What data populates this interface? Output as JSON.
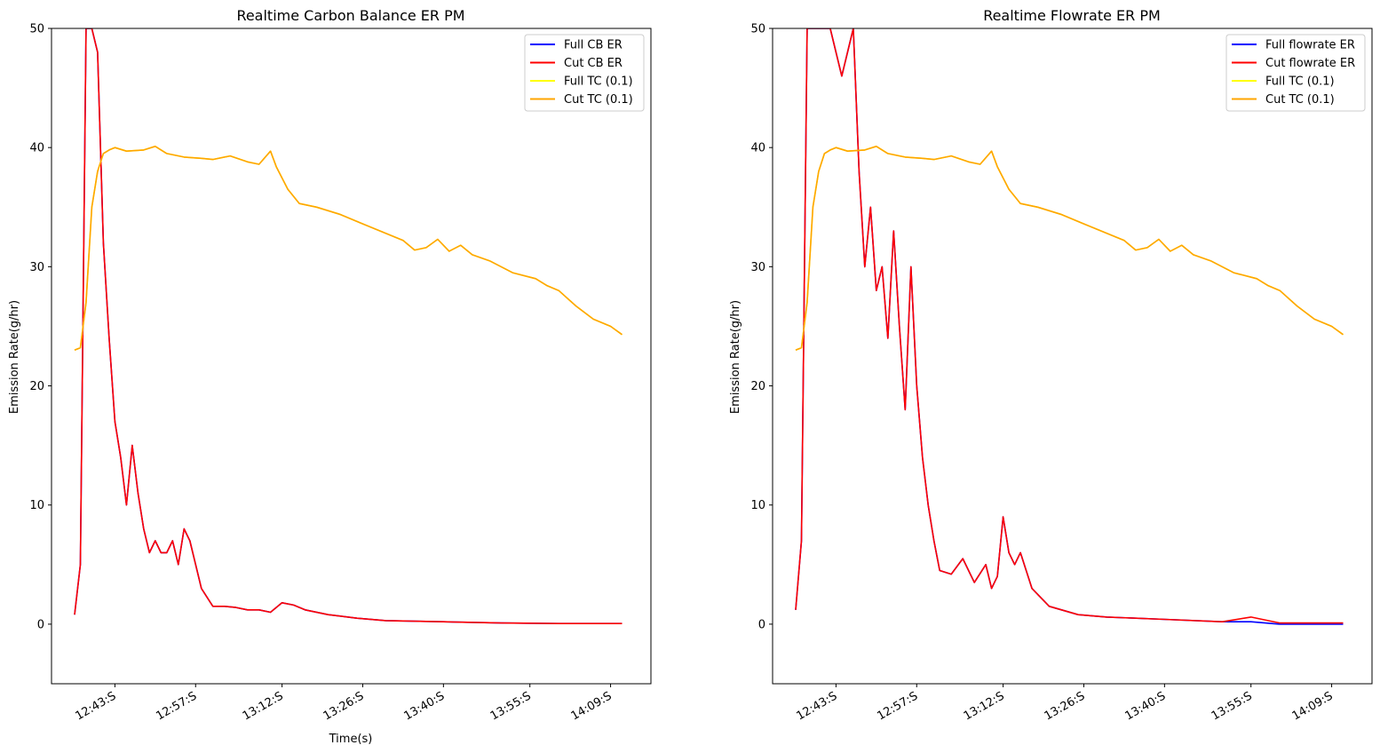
{
  "chart_data": [
    {
      "type": "line",
      "title": "Realtime Carbon Balance ER PM",
      "xlabel": "Time(s)",
      "ylabel": "Emission Rate(g/hr)",
      "ylim": [
        -5,
        50
      ],
      "xlim": [
        "12:32",
        "14:16"
      ],
      "yticks": [
        0,
        10,
        20,
        30,
        40,
        50
      ],
      "xticks": [
        "12:43:S",
        "12:57:S",
        "13:12:S",
        "13:26:S",
        "13:40:S",
        "13:55:S",
        "14:09:S"
      ],
      "legend_position": "top-right",
      "grid": false,
      "series": [
        {
          "name": "Full CB ER",
          "color": "#0000ff",
          "x": [
            "12:36",
            "12:37",
            "12:38",
            "12:39",
            "12:40",
            "12:41",
            "12:42",
            "12:43",
            "12:44",
            "12:45",
            "12:46",
            "12:47",
            "12:48",
            "12:49",
            "12:50",
            "12:51",
            "12:52",
            "12:53",
            "12:54",
            "12:55",
            "12:56",
            "12:57",
            "12:58",
            "13:00",
            "13:02",
            "13:04",
            "13:06",
            "13:08",
            "13:10",
            "13:12",
            "13:14",
            "13:16",
            "13:20",
            "13:25",
            "13:30",
            "13:40",
            "13:50",
            "14:00",
            "14:10",
            "14:11"
          ],
          "y": [
            0.8,
            5.0,
            50,
            50,
            48,
            32,
            24,
            17,
            14,
            10,
            15,
            11,
            8,
            6,
            7,
            6,
            6,
            7,
            5,
            8,
            7,
            5,
            3,
            1.5,
            1.5,
            1.4,
            1.2,
            1.2,
            1.0,
            1.8,
            1.6,
            1.2,
            0.8,
            0.5,
            0.3,
            0.2,
            0.1,
            0.05,
            0.05,
            0.05
          ]
        },
        {
          "name": "Cut CB ER",
          "color": "#ff0000",
          "x": [
            "12:36",
            "12:37",
            "12:38",
            "12:39",
            "12:40",
            "12:41",
            "12:42",
            "12:43",
            "12:44",
            "12:45",
            "12:46",
            "12:47",
            "12:48",
            "12:49",
            "12:50",
            "12:51",
            "12:52",
            "12:53",
            "12:54",
            "12:55",
            "12:56",
            "12:57",
            "12:58",
            "13:00",
            "13:02",
            "13:04",
            "13:06",
            "13:08",
            "13:10",
            "13:12",
            "13:14",
            "13:16",
            "13:20",
            "13:25",
            "13:30",
            "13:40",
            "13:50",
            "14:00",
            "14:10",
            "14:11"
          ],
          "y": [
            0.8,
            5.0,
            50,
            50,
            48,
            32,
            24,
            17,
            14,
            10,
            15,
            11,
            8,
            6,
            7,
            6,
            6,
            7,
            5,
            8,
            7,
            5,
            3,
            1.5,
            1.5,
            1.4,
            1.2,
            1.2,
            1.0,
            1.8,
            1.6,
            1.2,
            0.8,
            0.5,
            0.3,
            0.2,
            0.1,
            0.05,
            0.05,
            0.05
          ]
        },
        {
          "name": "Full TC (0.1)",
          "color": "#ffff00",
          "x": [
            "12:36",
            "12:37",
            "12:38",
            "12:39",
            "12:40",
            "12:41",
            "12:42",
            "12:43",
            "12:45",
            "12:48",
            "12:50",
            "12:52",
            "12:55",
            "12:58",
            "13:00",
            "13:03",
            "13:06",
            "13:08",
            "13:10",
            "13:11",
            "13:13",
            "13:15",
            "13:18",
            "13:22",
            "13:26",
            "13:30",
            "13:33",
            "13:35",
            "13:37",
            "13:39",
            "13:41",
            "13:43",
            "13:45",
            "13:48",
            "13:52",
            "13:56",
            "13:58",
            "14:00",
            "14:03",
            "14:06",
            "14:09",
            "14:11"
          ],
          "y": [
            23.0,
            23.2,
            27,
            35,
            38,
            39.5,
            39.8,
            40,
            39.7,
            39.8,
            40.1,
            39.5,
            39.2,
            39.1,
            39.0,
            39.3,
            38.8,
            38.6,
            39.7,
            38.4,
            36.5,
            35.3,
            35.0,
            34.4,
            33.6,
            32.8,
            32.2,
            31.4,
            31.6,
            32.3,
            31.3,
            31.8,
            31.0,
            30.5,
            29.5,
            29.0,
            28.4,
            28.0,
            26.7,
            25.6,
            25.0,
            24.3
          ]
        },
        {
          "name": "Cut TC (0.1)",
          "color": "#ffa500",
          "x": [
            "12:36",
            "12:37",
            "12:38",
            "12:39",
            "12:40",
            "12:41",
            "12:42",
            "12:43",
            "12:45",
            "12:48",
            "12:50",
            "12:52",
            "12:55",
            "12:58",
            "13:00",
            "13:03",
            "13:06",
            "13:08",
            "13:10",
            "13:11",
            "13:13",
            "13:15",
            "13:18",
            "13:22",
            "13:26",
            "13:30",
            "13:33",
            "13:35",
            "13:37",
            "13:39",
            "13:41",
            "13:43",
            "13:45",
            "13:48",
            "13:52",
            "13:56",
            "13:58",
            "14:00",
            "14:03",
            "14:06",
            "14:09",
            "14:11"
          ],
          "y": [
            23.0,
            23.2,
            27,
            35,
            38,
            39.5,
            39.8,
            40,
            39.7,
            39.8,
            40.1,
            39.5,
            39.2,
            39.1,
            39.0,
            39.3,
            38.8,
            38.6,
            39.7,
            38.4,
            36.5,
            35.3,
            35.0,
            34.4,
            33.6,
            32.8,
            32.2,
            31.4,
            31.6,
            32.3,
            31.3,
            31.8,
            31.0,
            30.5,
            29.5,
            29.0,
            28.4,
            28.0,
            26.7,
            25.6,
            25.0,
            24.3
          ]
        }
      ]
    },
    {
      "type": "line",
      "title": "Realtime Flowrate ER PM",
      "xlabel": "",
      "ylabel": "Emission Rate(g/hr)",
      "ylim": [
        -5,
        50
      ],
      "xlim": [
        "12:32",
        "14:16"
      ],
      "yticks": [
        0,
        10,
        20,
        30,
        40,
        50
      ],
      "xticks": [
        "12:43:S",
        "12:57:S",
        "13:12:S",
        "13:26:S",
        "13:40:S",
        "13:55:S",
        "14:09:S"
      ],
      "legend_position": "top-right",
      "grid": false,
      "series": [
        {
          "name": "Full flowrate ER",
          "color": "#0000ff",
          "x": [
            "12:36",
            "12:37",
            "12:38",
            "12:40",
            "12:42",
            "12:44",
            "12:46",
            "12:47",
            "12:48",
            "12:49",
            "12:50",
            "12:51",
            "12:52",
            "12:53",
            "12:54",
            "12:55",
            "12:56",
            "12:57",
            "12:58",
            "12:59",
            "13:00",
            "13:01",
            "13:03",
            "13:05",
            "13:07",
            "13:09",
            "13:10",
            "13:11",
            "13:12",
            "13:13",
            "13:14",
            "13:15",
            "13:17",
            "13:20",
            "13:25",
            "13:30",
            "13:40",
            "13:50",
            "13:55",
            "14:00",
            "14:05",
            "14:11"
          ],
          "y": [
            1.2,
            7.0,
            50,
            50,
            50,
            46,
            50,
            38,
            30,
            35,
            28,
            30,
            24,
            33,
            25,
            18,
            30,
            20,
            14,
            10,
            7,
            4.5,
            4.2,
            5.5,
            3.5,
            5.0,
            3,
            4,
            9,
            6,
            5,
            6,
            3,
            1.5,
            0.8,
            0.6,
            0.4,
            0.2,
            0.2,
            0,
            0,
            0
          ]
        },
        {
          "name": "Cut flowrate ER",
          "color": "#ff0000",
          "x": [
            "12:36",
            "12:37",
            "12:38",
            "12:40",
            "12:42",
            "12:44",
            "12:46",
            "12:47",
            "12:48",
            "12:49",
            "12:50",
            "12:51",
            "12:52",
            "12:53",
            "12:54",
            "12:55",
            "12:56",
            "12:57",
            "12:58",
            "12:59",
            "13:00",
            "13:01",
            "13:03",
            "13:05",
            "13:07",
            "13:09",
            "13:10",
            "13:11",
            "13:12",
            "13:13",
            "13:14",
            "13:15",
            "13:17",
            "13:20",
            "13:25",
            "13:30",
            "13:40",
            "13:50",
            "13:55",
            "14:00",
            "14:05",
            "14:11"
          ],
          "y": [
            1.2,
            7.0,
            50,
            50,
            50,
            46,
            50,
            38,
            30,
            35,
            28,
            30,
            24,
            33,
            25,
            18,
            30,
            20,
            14,
            10,
            7,
            4.5,
            4.2,
            5.5,
            3.5,
            5.0,
            3,
            4,
            9,
            6,
            5,
            6,
            3,
            1.5,
            0.8,
            0.6,
            0.4,
            0.2,
            0.6,
            0.1,
            0.1,
            0.1
          ]
        },
        {
          "name": "Full TC (0.1)",
          "color": "#ffff00",
          "x": [
            "12:36",
            "12:37",
            "12:38",
            "12:39",
            "12:40",
            "12:41",
            "12:42",
            "12:43",
            "12:45",
            "12:48",
            "12:50",
            "12:52",
            "12:55",
            "12:58",
            "13:00",
            "13:03",
            "13:06",
            "13:08",
            "13:10",
            "13:11",
            "13:13",
            "13:15",
            "13:18",
            "13:22",
            "13:26",
            "13:30",
            "13:33",
            "13:35",
            "13:37",
            "13:39",
            "13:41",
            "13:43",
            "13:45",
            "13:48",
            "13:52",
            "13:56",
            "13:58",
            "14:00",
            "14:03",
            "14:06",
            "14:09",
            "14:11"
          ],
          "y": [
            23.0,
            23.2,
            27,
            35,
            38,
            39.5,
            39.8,
            40,
            39.7,
            39.8,
            40.1,
            39.5,
            39.2,
            39.1,
            39.0,
            39.3,
            38.8,
            38.6,
            39.7,
            38.4,
            36.5,
            35.3,
            35.0,
            34.4,
            33.6,
            32.8,
            32.2,
            31.4,
            31.6,
            32.3,
            31.3,
            31.8,
            31.0,
            30.5,
            29.5,
            29.0,
            28.4,
            28.0,
            26.7,
            25.6,
            25.0,
            24.3
          ]
        },
        {
          "name": "Cut TC (0.1)",
          "color": "#ffa500",
          "x": [
            "12:36",
            "12:37",
            "12:38",
            "12:39",
            "12:40",
            "12:41",
            "12:42",
            "12:43",
            "12:45",
            "12:48",
            "12:50",
            "12:52",
            "12:55",
            "12:58",
            "13:00",
            "13:03",
            "13:06",
            "13:08",
            "13:10",
            "13:11",
            "13:13",
            "13:15",
            "13:18",
            "13:22",
            "13:26",
            "13:30",
            "13:33",
            "13:35",
            "13:37",
            "13:39",
            "13:41",
            "13:43",
            "13:45",
            "13:48",
            "13:52",
            "13:56",
            "13:58",
            "14:00",
            "14:03",
            "14:06",
            "14:09",
            "14:11"
          ],
          "y": [
            23.0,
            23.2,
            27,
            35,
            38,
            39.5,
            39.8,
            40,
            39.7,
            39.8,
            40.1,
            39.5,
            39.2,
            39.1,
            39.0,
            39.3,
            38.8,
            38.6,
            39.7,
            38.4,
            36.5,
            35.3,
            35.0,
            34.4,
            33.6,
            32.8,
            32.2,
            31.4,
            31.6,
            32.3,
            31.3,
            31.8,
            31.0,
            30.5,
            29.5,
            29.0,
            28.4,
            28.0,
            26.7,
            25.6,
            25.0,
            24.3
          ]
        }
      ]
    }
  ]
}
